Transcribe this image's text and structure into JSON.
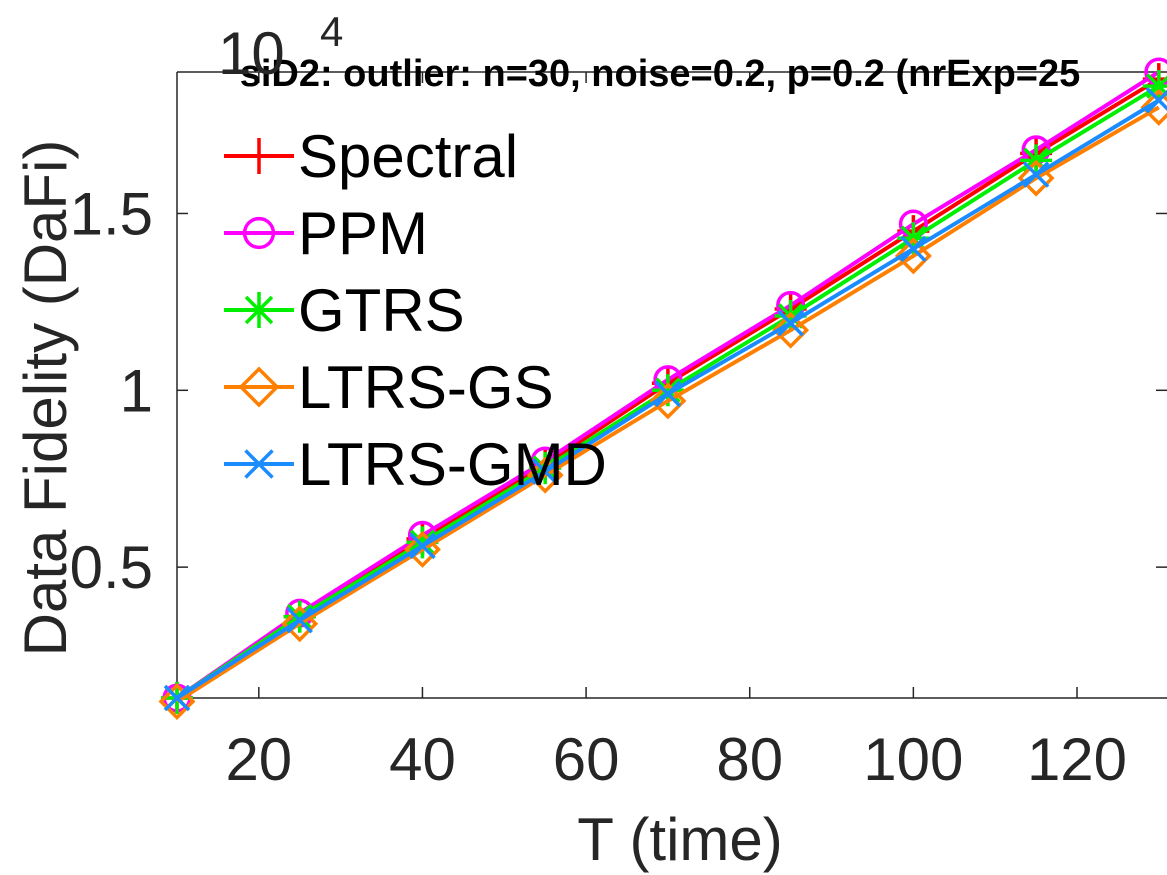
{
  "chart_data": {
    "type": "line",
    "title": "siD2: outlier: n=30, noise=0.2, p=0.2 (nrExp=25",
    "xlabel": "T (time)",
    "ylabel": "Data Fidelity (DaFi)",
    "y_multiplier_base": "10",
    "y_multiplier_exponent": "4",
    "xlim": [
      10,
      131
    ],
    "ylim": [
      0.13,
      1.9
    ],
    "x_ticks": [
      20,
      40,
      60,
      80,
      100,
      120
    ],
    "x_tick_labels": [
      "20",
      "40",
      "60",
      "80",
      "100",
      "120"
    ],
    "y_ticks": [
      0.5,
      1,
      1.5
    ],
    "y_tick_labels": [
      "0.5",
      "1",
      "1.5"
    ],
    "legend_position": "top-left",
    "grid": false,
    "x": [
      10,
      25,
      40,
      55,
      70,
      85,
      100,
      115,
      130
    ],
    "series": [
      {
        "name": "Spectral",
        "color": "#ff0000",
        "marker": "plus",
        "values": [
          0.13,
          0.36,
          0.58,
          0.79,
          1.02,
          1.23,
          1.45,
          1.67,
          1.88
        ]
      },
      {
        "name": "PPM",
        "color": "#ff00ff",
        "marker": "circle",
        "values": [
          0.13,
          0.37,
          0.59,
          0.8,
          1.03,
          1.24,
          1.47,
          1.68,
          1.9
        ]
      },
      {
        "name": "GTRS",
        "color": "#00ee00",
        "marker": "asterisk",
        "values": [
          0.13,
          0.36,
          0.57,
          0.78,
          1.0,
          1.21,
          1.43,
          1.65,
          1.86
        ]
      },
      {
        "name": "LTRS-GS",
        "color": "#ff8000",
        "marker": "diamond",
        "values": [
          0.12,
          0.34,
          0.55,
          0.76,
          0.97,
          1.17,
          1.38,
          1.6,
          1.8
        ]
      },
      {
        "name": "LTRS-GMD",
        "color": "#1a8cff",
        "marker": "x",
        "values": [
          0.13,
          0.35,
          0.56,
          0.77,
          0.99,
          1.19,
          1.4,
          1.61,
          1.82
        ]
      }
    ]
  }
}
